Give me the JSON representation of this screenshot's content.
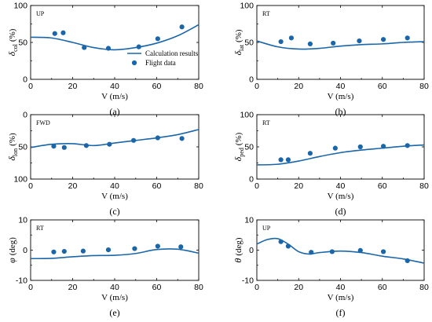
{
  "chart_data": [
    {
      "type": "line",
      "panel": "(a)",
      "corner_label": "UP",
      "ylabel_symbol": "δ",
      "ylabel_sub": "col",
      "ylabel_unit": "(%)",
      "xlabel": "V (m/s)",
      "xlim": [
        0,
        80
      ],
      "ylim": [
        0,
        100
      ],
      "y_inverted": false,
      "xticks": [
        0,
        20,
        40,
        60,
        80
      ],
      "yticks": [
        0,
        50,
        100
      ],
      "legend": {
        "line": "Calculation results",
        "points": "Flight data",
        "placement": "center-right"
      },
      "series": [
        {
          "name": "Calculation results",
          "kind": "line",
          "x": [
            0,
            10,
            20,
            30,
            40,
            50,
            60,
            70,
            80
          ],
          "y": [
            57,
            56,
            50,
            43,
            40,
            43,
            49,
            59,
            74
          ]
        },
        {
          "name": "Flight data",
          "kind": "scatter",
          "x": [
            11.5,
            15.5,
            25.5,
            37,
            51.5,
            60.5,
            72
          ],
          "y": [
            62,
            63,
            43,
            42,
            44,
            55,
            71
          ]
        }
      ]
    },
    {
      "type": "line",
      "panel": "(b)",
      "corner_label": "RT",
      "ylabel_symbol": "δ",
      "ylabel_sub": "lat",
      "ylabel_unit": "(%)",
      "xlabel": "V (m/s)",
      "xlim": [
        0,
        80
      ],
      "ylim": [
        0,
        100
      ],
      "y_inverted": false,
      "xticks": [
        0,
        20,
        40,
        60,
        80
      ],
      "yticks": [
        0,
        50,
        100
      ],
      "series": [
        {
          "kind": "line",
          "x": [
            0,
            10,
            20,
            30,
            40,
            50,
            60,
            70,
            80
          ],
          "y": [
            52,
            44,
            41,
            42,
            45,
            47,
            48,
            50,
            51
          ]
        },
        {
          "kind": "scatter",
          "x": [
            11.5,
            16.5,
            25.5,
            36.5,
            49,
            60.5,
            72
          ],
          "y": [
            51,
            56,
            48,
            49,
            52,
            54,
            56
          ]
        }
      ]
    },
    {
      "type": "line",
      "panel": "(c)",
      "corner_label": "FWD",
      "ylabel_symbol": "δ",
      "ylabel_sub": "lon",
      "ylabel_unit": "(%)",
      "xlabel": "V (m/s)",
      "xlim": [
        0,
        80
      ],
      "ylim": [
        100,
        0
      ],
      "y_inverted": true,
      "xticks": [
        0,
        20,
        40,
        60,
        80
      ],
      "yticks": [
        0,
        50,
        100
      ],
      "series": [
        {
          "kind": "line",
          "x": [
            0,
            10,
            20,
            30,
            40,
            50,
            60,
            70,
            80
          ],
          "y": [
            51,
            46,
            45,
            48,
            44,
            40,
            36,
            31,
            23
          ]
        },
        {
          "kind": "scatter",
          "x": [
            11,
            16,
            26.5,
            37.5,
            49,
            60.5,
            72
          ],
          "y": [
            49,
            51,
            48,
            46,
            40,
            36,
            37
          ]
        }
      ]
    },
    {
      "type": "line",
      "panel": "(d)",
      "corner_label": "RT",
      "ylabel_symbol": "δ",
      "ylabel_sub": "ped",
      "ylabel_unit": "(%)",
      "xlabel": "V (m/s)",
      "xlim": [
        0,
        80
      ],
      "ylim": [
        0,
        100
      ],
      "y_inverted": false,
      "xticks": [
        0,
        20,
        40,
        60,
        80
      ],
      "yticks": [
        0,
        50,
        100
      ],
      "series": [
        {
          "kind": "line",
          "x": [
            0,
            10,
            20,
            30,
            40,
            50,
            60,
            70,
            80
          ],
          "y": [
            22,
            23,
            28,
            35,
            41,
            45,
            48,
            51,
            53
          ]
        },
        {
          "kind": "scatter",
          "x": [
            11.5,
            15,
            25.5,
            37.5,
            49.5,
            60.5,
            72
          ],
          "y": [
            30,
            30,
            40,
            48,
            50,
            51,
            52
          ]
        }
      ]
    },
    {
      "type": "line",
      "panel": "(e)",
      "corner_label": "RT",
      "ylabel_symbol": "φ",
      "ylabel_unit": "(deg)",
      "xlabel": "V (m/s)",
      "xlim": [
        0,
        80
      ],
      "ylim": [
        -10,
        10
      ],
      "y_inverted": false,
      "xticks": [
        0,
        20,
        40,
        60,
        80
      ],
      "yticks": [
        -10,
        0,
        10
      ],
      "series": [
        {
          "kind": "line",
          "x": [
            0,
            10,
            20,
            30,
            40,
            50,
            60,
            70,
            80
          ],
          "y": [
            -2.8,
            -2.7,
            -2.2,
            -1.8,
            -1.7,
            -1.1,
            0.2,
            0.3,
            -1.0
          ]
        },
        {
          "kind": "scatter",
          "x": [
            11,
            16,
            25,
            37,
            49.5,
            60.5,
            71.5
          ],
          "y": [
            -0.6,
            -0.4,
            -0.3,
            0.1,
            0.5,
            1.3,
            1.1
          ]
        }
      ]
    },
    {
      "type": "line",
      "panel": "(f)",
      "corner_label": "UP",
      "ylabel_symbol": "θ",
      "ylabel_unit": "(deg)",
      "xlabel": "V (m/s)",
      "xlim": [
        0,
        80
      ],
      "ylim": [
        -10,
        10
      ],
      "y_inverted": false,
      "xticks": [
        0,
        20,
        40,
        60,
        80
      ],
      "yticks": [
        -10,
        0,
        10
      ],
      "series": [
        {
          "kind": "line",
          "x": [
            0,
            5,
            10,
            15,
            20,
            25,
            30,
            40,
            50,
            60,
            70,
            80
          ],
          "y": [
            2.0,
            3.5,
            3.8,
            2.0,
            -0.5,
            -1.3,
            -0.8,
            -0.3,
            -0.8,
            -2.0,
            -2.9,
            -4.3
          ]
        },
        {
          "kind": "scatter",
          "x": [
            11.5,
            15,
            26,
            36,
            49.5,
            60.5,
            72
          ],
          "y": [
            2.8,
            1.3,
            -0.7,
            -0.5,
            -0.1,
            -0.5,
            -3.5
          ]
        }
      ]
    }
  ]
}
